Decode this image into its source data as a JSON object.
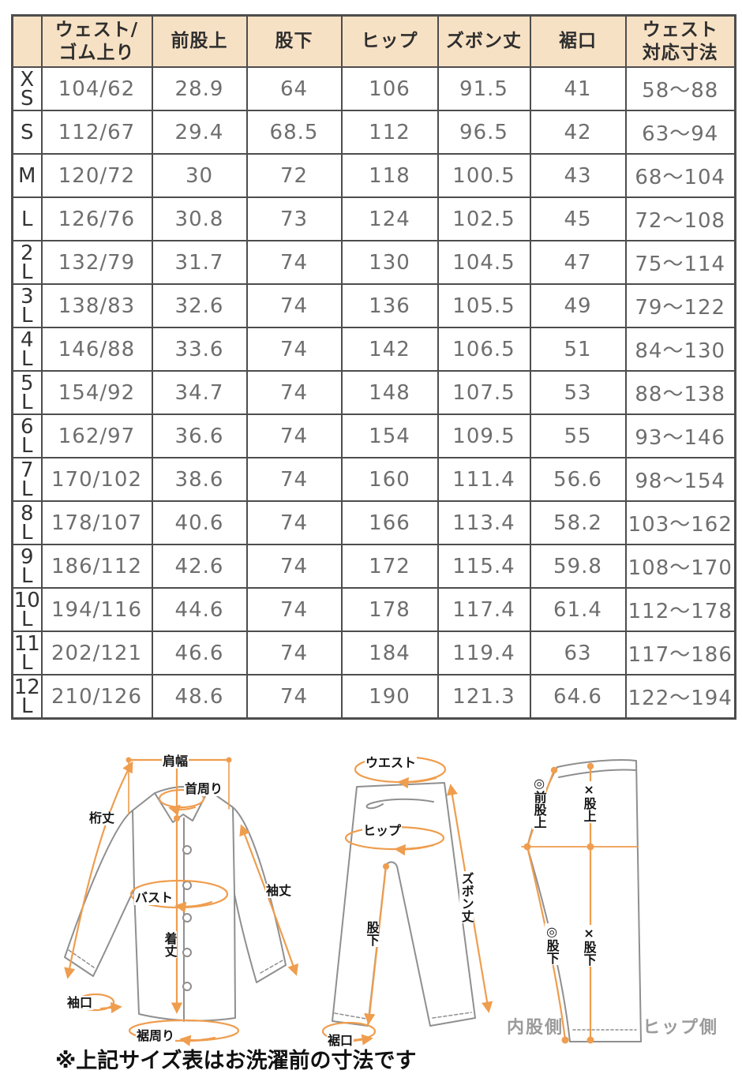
{
  "table": {
    "columns": [
      [
        ""
      ],
      [
        "ウェスト/",
        "ゴム上り"
      ],
      [
        "前股上"
      ],
      [
        "股下"
      ],
      [
        "ヒップ"
      ],
      [
        "ズボン丈"
      ],
      [
        "裾口"
      ],
      [
        "ウェスト",
        "対応寸法"
      ]
    ],
    "rows": [
      {
        "size": "XS",
        "values": [
          "104/62",
          "28.9",
          "64",
          "106",
          "91.5",
          "41",
          "58～88"
        ]
      },
      {
        "size": "S",
        "values": [
          "112/67",
          "29.4",
          "68.5",
          "112",
          "96.5",
          "42",
          "63～94"
        ]
      },
      {
        "size": "M",
        "values": [
          "120/72",
          "30",
          "72",
          "118",
          "100.5",
          "43",
          "68～104"
        ]
      },
      {
        "size": "L",
        "values": [
          "126/76",
          "30.8",
          "73",
          "124",
          "102.5",
          "45",
          "72～108"
        ]
      },
      {
        "size": "2L",
        "values": [
          "132/79",
          "31.7",
          "74",
          "130",
          "104.5",
          "47",
          "75～114"
        ]
      },
      {
        "size": "3L",
        "values": [
          "138/83",
          "32.6",
          "74",
          "136",
          "105.5",
          "49",
          "79～122"
        ]
      },
      {
        "size": "4L",
        "values": [
          "146/88",
          "33.6",
          "74",
          "142",
          "106.5",
          "51",
          "84～130"
        ]
      },
      {
        "size": "5L",
        "values": [
          "154/92",
          "34.7",
          "74",
          "148",
          "107.5",
          "53",
          "88～138"
        ]
      },
      {
        "size": "6L",
        "values": [
          "162/97",
          "36.6",
          "74",
          "154",
          "109.5",
          "55",
          "93～146"
        ]
      },
      {
        "size": "7L",
        "values": [
          "170/102",
          "38.6",
          "74",
          "160",
          "111.4",
          "56.6",
          "98～154"
        ]
      },
      {
        "size": "8L",
        "values": [
          "178/107",
          "40.6",
          "74",
          "166",
          "113.4",
          "58.2",
          "103～162"
        ]
      },
      {
        "size": "9L",
        "values": [
          "186/112",
          "42.6",
          "74",
          "172",
          "115.4",
          "59.8",
          "108～170"
        ]
      },
      {
        "size": "10L",
        "values": [
          "194/116",
          "44.6",
          "74",
          "178",
          "117.4",
          "61.4",
          "112～178"
        ]
      },
      {
        "size": "11L",
        "values": [
          "202/121",
          "46.6",
          "74",
          "184",
          "119.4",
          "63",
          "117～186"
        ]
      },
      {
        "size": "12L",
        "values": [
          "210/126",
          "48.6",
          "74",
          "190",
          "121.3",
          "64.6",
          "122～194"
        ]
      }
    ]
  },
  "diagrams": {
    "shirt": {
      "labels": {
        "shoulder_width": "肩幅",
        "neck": "首周り",
        "yuki": "桁丈",
        "sleeve_length": "袖丈",
        "bust": "バスト",
        "body_length": "着丈",
        "cuff": "袖口",
        "hem_round": "裾周り"
      }
    },
    "pants_front": {
      "labels": {
        "waist": "ウエスト",
        "hip": "ヒップ",
        "pants_length": "ズボン丈",
        "inseam": "股下",
        "hem_opening": "裾口"
      }
    },
    "pants_side": {
      "labels": {
        "front_rise": "◎前股上",
        "rise": "×股上",
        "inseam_o": "◎股下",
        "inseam_x": "×股下",
        "inner_side": "内股側",
        "hip_side": "ヒップ側"
      }
    },
    "note": "※上記サイズ表はお洗濯前の寸法です"
  },
  "colors": {
    "header_bg": "#f7e1c4",
    "table_border": "#4d4d4d",
    "value_text": "#6e6e6e",
    "size_text": "#333333",
    "accent_orange": "#ef9d4e",
    "line_gray": "#8f8f8f",
    "side_label_gray": "#9b9b9b",
    "note_text": "#111111"
  }
}
